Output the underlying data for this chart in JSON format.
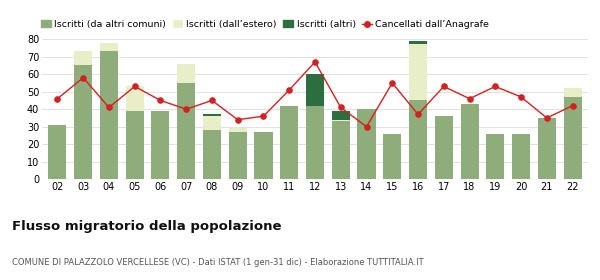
{
  "years": [
    "02",
    "03",
    "04",
    "05",
    "06",
    "07",
    "08",
    "09",
    "10",
    "11",
    "12",
    "13",
    "14",
    "15",
    "16",
    "17",
    "18",
    "19",
    "20",
    "21",
    "22"
  ],
  "iscritti_comuni": [
    31,
    65,
    73,
    39,
    39,
    55,
    28,
    27,
    27,
    42,
    42,
    33,
    40,
    26,
    45,
    36,
    43,
    26,
    26,
    35,
    47
  ],
  "iscritti_estero": [
    0,
    8,
    5,
    14,
    0,
    11,
    8,
    2,
    0,
    0,
    0,
    1,
    0,
    0,
    32,
    0,
    0,
    0,
    0,
    0,
    5
  ],
  "iscritti_altri": [
    0,
    0,
    0,
    0,
    0,
    0,
    1,
    0,
    0,
    0,
    18,
    5,
    0,
    0,
    2,
    0,
    0,
    0,
    0,
    0,
    0
  ],
  "cancellati": [
    46,
    58,
    41,
    53,
    45,
    40,
    45,
    34,
    36,
    51,
    67,
    41,
    30,
    55,
    37,
    53,
    46,
    53,
    47,
    35,
    42
  ],
  "color_comuni": "#8fad7a",
  "color_estero": "#e8eec8",
  "color_altri": "#2d6e3e",
  "color_cancellati": "#d42020",
  "ylim": [
    0,
    80
  ],
  "yticks": [
    0,
    10,
    20,
    30,
    40,
    50,
    60,
    70,
    80
  ],
  "title": "Flusso migratorio della popolazione",
  "subtitle": "COMUNE DI PALAZZOLO VERCELLESE (VC) - Dati ISTAT (1 gen-31 dic) - Elaborazione TUTTITALIA.IT",
  "legend_labels": [
    "Iscritti (da altri comuni)",
    "Iscritti (dall’estero)",
    "Iscritti (altri)",
    "Cancellati dall’Anagrafe"
  ],
  "bg_color": "#ffffff",
  "grid_color": "#dddddd"
}
